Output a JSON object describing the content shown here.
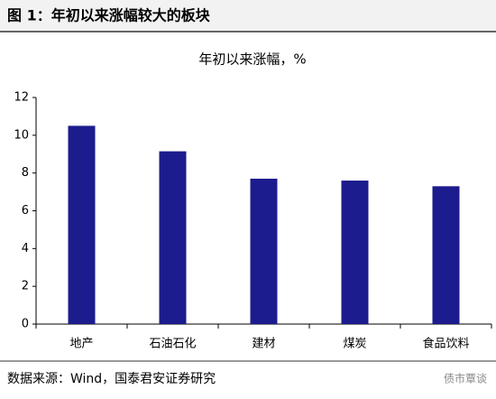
{
  "chart_data": {
    "type": "bar",
    "header": "图 1：年初以来涨幅较大的板块",
    "title": "年初以来涨幅，%",
    "categories": [
      "地产",
      "石油石化",
      "建材",
      "煤炭",
      "食品饮料"
    ],
    "values": [
      10.5,
      9.15,
      7.7,
      7.6,
      7.3
    ],
    "color": "#1c1c8e",
    "ylim": [
      0,
      12
    ],
    "yticks": [
      0,
      2,
      4,
      6,
      8,
      10,
      12
    ],
    "source": "数据来源：Wind，国泰君安证券研究",
    "watermark": "债市覃谈"
  }
}
